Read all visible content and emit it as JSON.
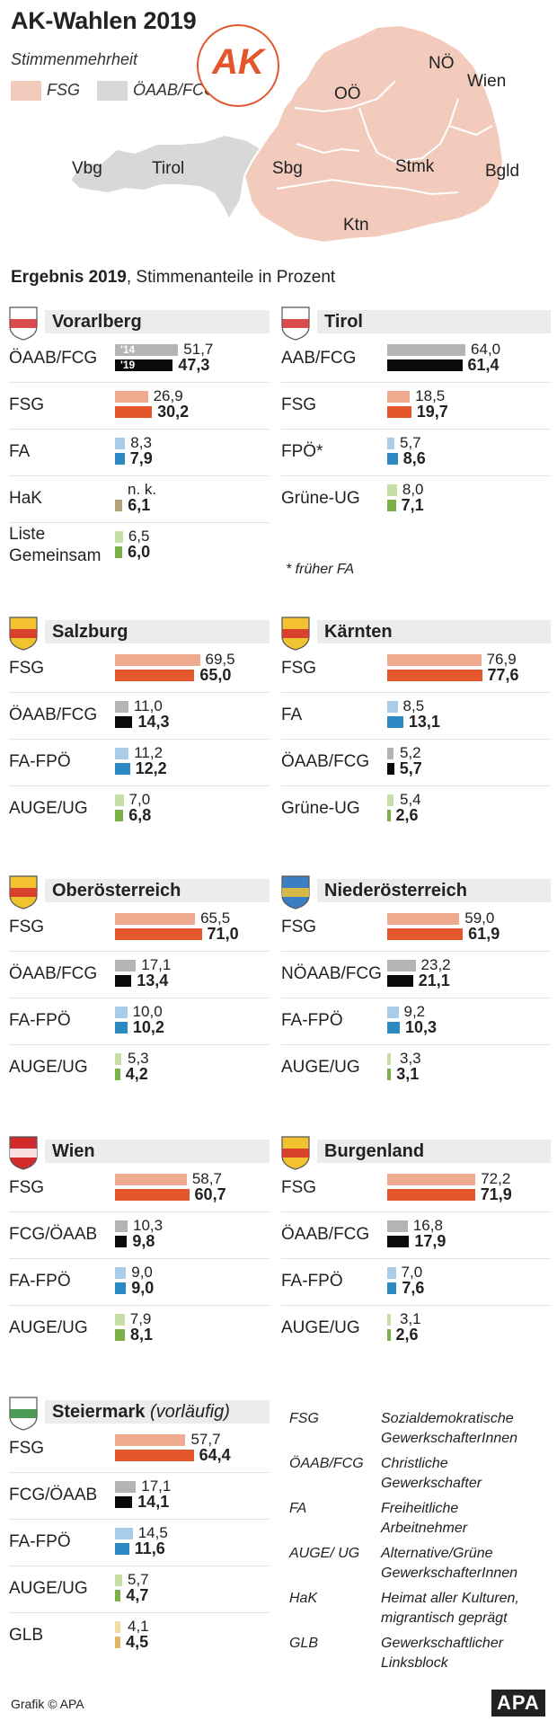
{
  "title": "AK-Wahlen 2019",
  "map": {
    "majority_label": "Stimmenmehrheit",
    "legend": [
      {
        "label": "FSG",
        "color": "#f2cbbd"
      },
      {
        "label": "ÖAAB/FCG",
        "color": "#d8d8d8"
      }
    ],
    "logo_text": "AK",
    "region_labels": [
      "Vbg",
      "Tirol",
      "Sbg",
      "OÖ",
      "NÖ",
      "Wien",
      "Stmk",
      "Bgld",
      "Ktn"
    ]
  },
  "subtitle": {
    "bold": "Ergebnis 2019",
    "rest": ", Stimmenanteile in Prozent"
  },
  "colors": {
    "fsg_prev": "#eeab90",
    "fsg_cur": "#e4562c",
    "oeaab_prev": "#b4b4b4",
    "oeaab_cur": "#0a0a0a",
    "fa_prev": "#a9cde8",
    "fa_cur": "#2d89c2",
    "green_prev": "#c7dfa6",
    "green_cur": "#7ab249",
    "hak_cur": "#b0a37a",
    "glb_prev": "#f3dca0",
    "glb_cur": "#e3b461"
  },
  "year_labels": {
    "prev": "'14",
    "cur": "'19"
  },
  "footnote": "* früher FA",
  "chart_data": {
    "type": "bar",
    "title": "AK-Wahlen 2019 – Ergebnis 2019, Stimmenanteile in Prozent",
    "series_names": [
      "2014",
      "2019"
    ],
    "states": [
      {
        "name": "Vorarlberg",
        "rows": [
          {
            "label": "ÖAAB/FCG",
            "prev": 51.7,
            "cur": 47.3,
            "prev_text": "51,7",
            "cur_text": "47,3",
            "prev_color": "#b4b4b4",
            "cur_color": "#0a0a0a"
          },
          {
            "label": "FSG",
            "prev": 26.9,
            "cur": 30.2,
            "prev_text": "26,9",
            "cur_text": "30,2",
            "prev_color": "#eeab90",
            "cur_color": "#e4562c"
          },
          {
            "label": "FA",
            "prev": 8.3,
            "cur": 7.9,
            "prev_text": "8,3",
            "cur_text": "7,9",
            "prev_color": "#a9cde8",
            "cur_color": "#2d89c2"
          },
          {
            "label": "HaK",
            "prev": null,
            "cur": 6.1,
            "prev_text": "n. k.",
            "cur_text": "6,1",
            "prev_color": "#cccccc",
            "cur_color": "#b0a37a"
          },
          {
            "label": "Liste Gemeinsam",
            "prev": 6.5,
            "cur": 6.0,
            "prev_text": "6,5",
            "cur_text": "6,0",
            "prev_color": "#c7dfa6",
            "cur_color": "#7ab249"
          }
        ]
      },
      {
        "name": "Tirol",
        "rows": [
          {
            "label": "AAB/FCG",
            "prev": 64.0,
            "cur": 61.4,
            "prev_text": "64,0",
            "cur_text": "61,4",
            "prev_color": "#b4b4b4",
            "cur_color": "#0a0a0a"
          },
          {
            "label": "FSG",
            "prev": 18.5,
            "cur": 19.7,
            "prev_text": "18,5",
            "cur_text": "19,7",
            "prev_color": "#eeab90",
            "cur_color": "#e4562c"
          },
          {
            "label": "FPÖ*",
            "prev": 5.7,
            "cur": 8.6,
            "prev_text": "5,7",
            "cur_text": "8,6",
            "prev_color": "#a9cde8",
            "cur_color": "#2d89c2"
          },
          {
            "label": "Grüne-UG",
            "prev": 8.0,
            "cur": 7.1,
            "prev_text": "8,0",
            "cur_text": "7,1",
            "prev_color": "#c7dfa6",
            "cur_color": "#7ab249"
          }
        ]
      },
      {
        "name": "Salzburg",
        "rows": [
          {
            "label": "FSG",
            "prev": 69.5,
            "cur": 65.0,
            "prev_text": "69,5",
            "cur_text": "65,0",
            "prev_color": "#eeab90",
            "cur_color": "#e4562c"
          },
          {
            "label": "ÖAAB/FCG",
            "prev": 11.0,
            "cur": 14.3,
            "prev_text": "11,0",
            "cur_text": "14,3",
            "prev_color": "#b4b4b4",
            "cur_color": "#0a0a0a"
          },
          {
            "label": "FA-FPÖ",
            "prev": 11.2,
            "cur": 12.2,
            "prev_text": "11,2",
            "cur_text": "12,2",
            "prev_color": "#a9cde8",
            "cur_color": "#2d89c2"
          },
          {
            "label": "AUGE/UG",
            "prev": 7.0,
            "cur": 6.8,
            "prev_text": "7,0",
            "cur_text": "6,8",
            "prev_color": "#c7dfa6",
            "cur_color": "#7ab249"
          }
        ]
      },
      {
        "name": "Kärnten",
        "rows": [
          {
            "label": "FSG",
            "prev": 76.9,
            "cur": 77.6,
            "prev_text": "76,9",
            "cur_text": "77,6",
            "prev_color": "#eeab90",
            "cur_color": "#e4562c"
          },
          {
            "label": "FA",
            "prev": 8.5,
            "cur": 13.1,
            "prev_text": "8,5",
            "cur_text": "13,1",
            "prev_color": "#a9cde8",
            "cur_color": "#2d89c2"
          },
          {
            "label": "ÖAAB/FCG",
            "prev": 5.2,
            "cur": 5.7,
            "prev_text": "5,2",
            "cur_text": "5,7",
            "prev_color": "#b4b4b4",
            "cur_color": "#0a0a0a"
          },
          {
            "label": "Grüne-UG",
            "prev": 5.4,
            "cur": 2.6,
            "prev_text": "5,4",
            "cur_text": "2,6",
            "prev_color": "#c7dfa6",
            "cur_color": "#7ab249"
          }
        ]
      },
      {
        "name": "Oberösterreich",
        "rows": [
          {
            "label": "FSG",
            "prev": 65.5,
            "cur": 71.0,
            "prev_text": "65,5",
            "cur_text": "71,0",
            "prev_color": "#eeab90",
            "cur_color": "#e4562c"
          },
          {
            "label": "ÖAAB/FCG",
            "prev": 17.1,
            "cur": 13.4,
            "prev_text": "17,1",
            "cur_text": "13,4",
            "prev_color": "#b4b4b4",
            "cur_color": "#0a0a0a"
          },
          {
            "label": "FA-FPÖ",
            "prev": 10.0,
            "cur": 10.2,
            "prev_text": "10,0",
            "cur_text": "10,2",
            "prev_color": "#a9cde8",
            "cur_color": "#2d89c2"
          },
          {
            "label": "AUGE/UG",
            "prev": 5.3,
            "cur": 4.2,
            "prev_text": "5,3",
            "cur_text": "4,2",
            "prev_color": "#c7dfa6",
            "cur_color": "#7ab249"
          }
        ]
      },
      {
        "name": "Niederösterreich",
        "rows": [
          {
            "label": "FSG",
            "prev": 59.0,
            "cur": 61.9,
            "prev_text": "59,0",
            "cur_text": "61,9",
            "prev_color": "#eeab90",
            "cur_color": "#e4562c"
          },
          {
            "label": "NÖAAB/FCG",
            "prev": 23.2,
            "cur": 21.1,
            "prev_text": "23,2",
            "cur_text": "21,1",
            "prev_color": "#b4b4b4",
            "cur_color": "#0a0a0a"
          },
          {
            "label": "FA-FPÖ",
            "prev": 9.2,
            "cur": 10.3,
            "prev_text": "9,2",
            "cur_text": "10,3",
            "prev_color": "#a9cde8",
            "cur_color": "#2d89c2"
          },
          {
            "label": "AUGE/UG",
            "prev": 3.3,
            "cur": 3.1,
            "prev_text": "3,3",
            "cur_text": "3,1",
            "prev_color": "#c7dfa6",
            "cur_color": "#7ab249"
          }
        ]
      },
      {
        "name": "Wien",
        "rows": [
          {
            "label": "FSG",
            "prev": 58.7,
            "cur": 60.7,
            "prev_text": "58,7",
            "cur_text": "60,7",
            "prev_color": "#eeab90",
            "cur_color": "#e4562c"
          },
          {
            "label": "FCG/ÖAAB",
            "prev": 10.3,
            "cur": 9.8,
            "prev_text": "10,3",
            "cur_text": "9,8",
            "prev_color": "#b4b4b4",
            "cur_color": "#0a0a0a"
          },
          {
            "label": "FA-FPÖ",
            "prev": 9.0,
            "cur": 9.0,
            "prev_text": "9,0",
            "cur_text": "9,0",
            "prev_color": "#a9cde8",
            "cur_color": "#2d89c2"
          },
          {
            "label": "AUGE/UG",
            "prev": 7.9,
            "cur": 8.1,
            "prev_text": "7,9",
            "cur_text": "8,1",
            "prev_color": "#c7dfa6",
            "cur_color": "#7ab249"
          }
        ]
      },
      {
        "name": "Burgenland",
        "rows": [
          {
            "label": "FSG",
            "prev": 72.2,
            "cur": 71.9,
            "prev_text": "72,2",
            "cur_text": "71,9",
            "prev_color": "#eeab90",
            "cur_color": "#e4562c"
          },
          {
            "label": "ÖAAB/FCG",
            "prev": 16.8,
            "cur": 17.9,
            "prev_text": "16,8",
            "cur_text": "17,9",
            "prev_color": "#b4b4b4",
            "cur_color": "#0a0a0a"
          },
          {
            "label": "FA-FPÖ",
            "prev": 7.0,
            "cur": 7.6,
            "prev_text": "7,0",
            "cur_text": "7,6",
            "prev_color": "#a9cde8",
            "cur_color": "#2d89c2"
          },
          {
            "label": "AUGE/UG",
            "prev": 3.1,
            "cur": 2.6,
            "prev_text": "3,1",
            "cur_text": "2,6",
            "prev_color": "#c7dfa6",
            "cur_color": "#7ab249"
          }
        ]
      },
      {
        "name": "Steiermark",
        "name_suffix": "(vorläufig)",
        "rows": [
          {
            "label": "FSG",
            "prev": 57.7,
            "cur": 64.4,
            "prev_text": "57,7",
            "cur_text": "64,4",
            "prev_color": "#eeab90",
            "cur_color": "#e4562c"
          },
          {
            "label": "FCG/ÖAAB",
            "prev": 17.1,
            "cur": 14.1,
            "prev_text": "17,1",
            "cur_text": "14,1",
            "prev_color": "#b4b4b4",
            "cur_color": "#0a0a0a"
          },
          {
            "label": "FA-FPÖ",
            "prev": 14.5,
            "cur": 11.6,
            "prev_text": "14,5",
            "cur_text": "11,6",
            "prev_color": "#a9cde8",
            "cur_color": "#2d89c2"
          },
          {
            "label": "AUGE/UG",
            "prev": 5.7,
            "cur": 4.7,
            "prev_text": "5,7",
            "cur_text": "4,7",
            "prev_color": "#c7dfa6",
            "cur_color": "#7ab249"
          },
          {
            "label": "GLB",
            "prev": 4.1,
            "cur": 4.5,
            "prev_text": "4,1",
            "cur_text": "4,5",
            "prev_color": "#f3dca0",
            "cur_color": "#e3b461"
          }
        ]
      }
    ]
  },
  "glossary": [
    {
      "abbr": "FSG",
      "desc": "Sozialdemokratische GewerkschafterInnen"
    },
    {
      "abbr": "ÖAAB/FCG",
      "desc": "Christliche Gewerkschafter"
    },
    {
      "abbr": "FA",
      "desc": "Freiheitliche Arbeitnehmer"
    },
    {
      "abbr": "AUGE/ UG",
      "desc": "Alternative/Grüne GewerkschafterInnen"
    },
    {
      "abbr": "HaK",
      "desc": "Heimat aller Kulturen, migrantisch geprägt"
    },
    {
      "abbr": "GLB",
      "desc": "Gewerkschaftlicher Linksblock"
    }
  ],
  "credit": "Grafik © APA",
  "apa_logo": "APA"
}
